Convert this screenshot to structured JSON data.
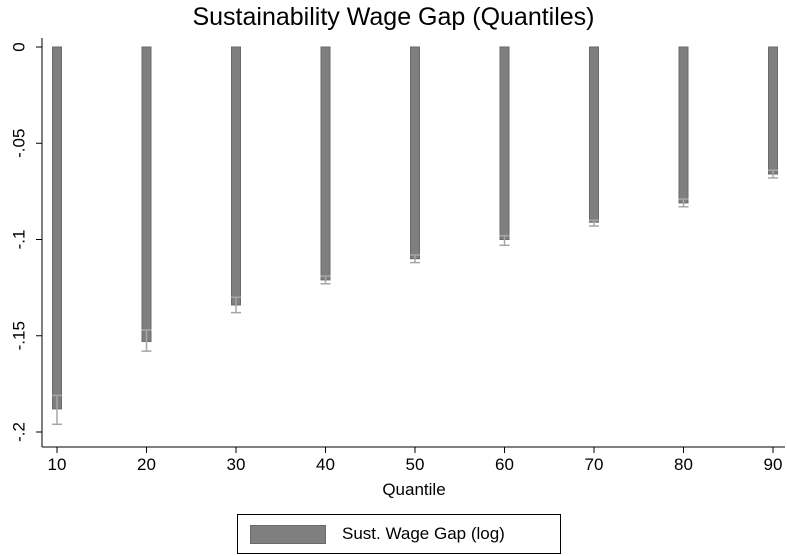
{
  "chart_data": {
    "type": "bar",
    "title": "Sustainability Wage Gap (Quantiles)",
    "xlabel": "Quantile",
    "ylabel": "",
    "categories": [
      "10",
      "20",
      "30",
      "40",
      "50",
      "60",
      "70",
      "80",
      "90"
    ],
    "series": [
      {
        "name": "Sust. Wage Gap (log)",
        "values": [
          -0.188,
          -0.153,
          -0.134,
          -0.121,
          -0.11,
          -0.1,
          -0.091,
          -0.081,
          -0.066
        ],
        "ci_low": [
          -0.196,
          -0.158,
          -0.138,
          -0.123,
          -0.112,
          -0.103,
          -0.093,
          -0.083,
          -0.068
        ],
        "ci_high": [
          -0.181,
          -0.147,
          -0.13,
          -0.119,
          -0.108,
          -0.098,
          -0.09,
          -0.079,
          -0.064
        ],
        "color": "#7f7f7f"
      }
    ],
    "y_ticks": [
      "0",
      "-.05",
      "-.1",
      "-.15",
      "-.2"
    ],
    "y_tick_values": [
      0,
      -0.05,
      -0.1,
      -0.15,
      -0.2
    ],
    "ylim": [
      -0.2,
      0
    ],
    "grid": false,
    "legend_position": "bottom-center",
    "colors": {
      "bar": "#7f7f7f",
      "bar_edge": "#6a6a6a",
      "error_bar": "#a6a6a6",
      "axis": "#000000"
    }
  }
}
